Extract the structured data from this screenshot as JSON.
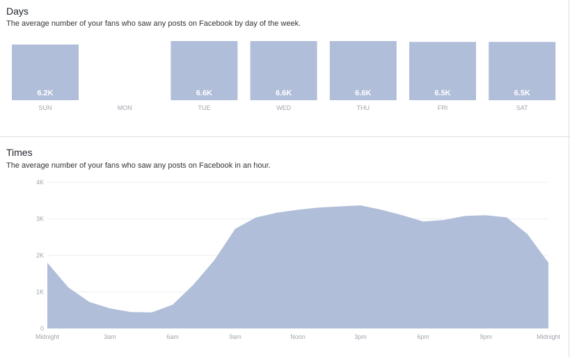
{
  "days_section": {
    "title": "Days",
    "subtitle": "The average number of your fans who saw any posts on Facebook by day of the week."
  },
  "times_section": {
    "title": "Times",
    "subtitle": "The average number of your fans who saw any posts on Facebook in an hour."
  },
  "colors": {
    "bar_fill": "#b1bed9",
    "area_fill": "#b1bed9",
    "bar_label": "#ffffff",
    "axis_label": "#a0a4ab",
    "grid": "#eceef2"
  },
  "chart_data": [
    {
      "type": "bar",
      "categories": [
        "SUN",
        "MON",
        "TUE",
        "WED",
        "THU",
        "FRI",
        "SAT"
      ],
      "values": [
        6.2,
        null,
        6.6,
        6.6,
        6.6,
        6.5,
        6.5
      ],
      "data_labels": [
        "6.2K",
        "",
        "6.6K",
        "6.6K",
        "6.6K",
        "6.5K",
        "6.5K"
      ],
      "ylim": [
        5.0,
        6.6
      ]
    },
    {
      "type": "area",
      "x": [
        0,
        1,
        2,
        3,
        4,
        5,
        6,
        7,
        8,
        9,
        10,
        11,
        12,
        13,
        14,
        15,
        16,
        17,
        18,
        19,
        20,
        21,
        22,
        23,
        24
      ],
      "values": [
        1.8,
        1.13,
        0.73,
        0.55,
        0.45,
        0.44,
        0.65,
        1.2,
        1.87,
        2.73,
        3.04,
        3.17,
        3.25,
        3.31,
        3.34,
        3.37,
        3.25,
        3.1,
        2.93,
        2.97,
        3.08,
        3.1,
        3.04,
        2.58,
        1.8
      ],
      "x_tick_positions": [
        0,
        3,
        6,
        9,
        12,
        15,
        18,
        21,
        24
      ],
      "x_tick_labels": [
        "Midnight",
        "3am",
        "6am",
        "9am",
        "Noon",
        "3pm",
        "6pm",
        "9pm",
        "Midnight"
      ],
      "y_tick_values": [
        0,
        1,
        2,
        3,
        4
      ],
      "y_tick_labels": [
        "0",
        "1K",
        "2K",
        "3K",
        "4K"
      ],
      "ylim": [
        0,
        4
      ],
      "xlim": [
        0,
        24
      ],
      "grid": true
    }
  ]
}
